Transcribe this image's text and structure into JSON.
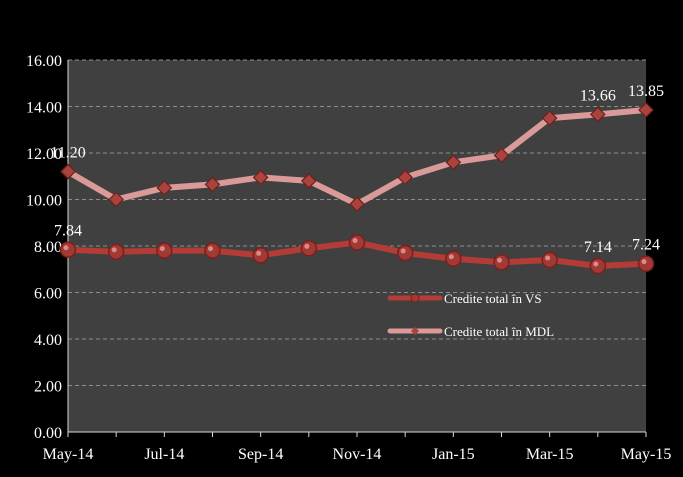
{
  "chart_data": {
    "type": "line",
    "title": "",
    "xlabel": "",
    "ylabel": "",
    "x": [
      "May-14",
      "Jun-14",
      "Jul-14",
      "Aug-14",
      "Sep-14",
      "Oct-14",
      "Nov-14",
      "Dec-14",
      "Jan-15",
      "Feb-15",
      "Mar-15",
      "Apr-15",
      "May-15"
    ],
    "x_tick_labels": [
      "May-14",
      "Jul-14",
      "Sep-14",
      "Nov-14",
      "Jan-15",
      "Mar-15",
      "May-15"
    ],
    "ylim": [
      0,
      16
    ],
    "y_ticks": [
      "0.00",
      "2.00",
      "4.00",
      "6.00",
      "8.00",
      "10.00",
      "12.00",
      "14.00",
      "16.00"
    ],
    "grid": true,
    "legend_position": "lower-right",
    "series": [
      {
        "name": "Credite total în VS",
        "values": [
          7.84,
          7.75,
          7.8,
          7.8,
          7.6,
          7.9,
          8.15,
          7.7,
          7.45,
          7.3,
          7.4,
          7.14,
          7.24
        ],
        "data_labels": [
          {
            "index": 0,
            "text": "7.84"
          },
          {
            "index": 11,
            "text": "7.14"
          },
          {
            "index": 12,
            "text": "7.24"
          }
        ],
        "color": "#b33c36",
        "marker": "circle"
      },
      {
        "name": "Credite total în MDL",
        "values": [
          11.2,
          10.0,
          10.5,
          10.65,
          10.95,
          10.8,
          9.8,
          10.95,
          11.6,
          11.9,
          13.5,
          13.66,
          13.85
        ],
        "data_labels": [
          {
            "index": 0,
            "text": "11.20"
          },
          {
            "index": 11,
            "text": "13.66"
          },
          {
            "index": 12,
            "text": "13.85"
          }
        ],
        "color": "#d99a98",
        "marker": "diamond"
      }
    ],
    "colors": {
      "background": "#000000",
      "plot_area": "#404040",
      "gridline": "#8c8c8c",
      "text": "#ffffff"
    }
  }
}
